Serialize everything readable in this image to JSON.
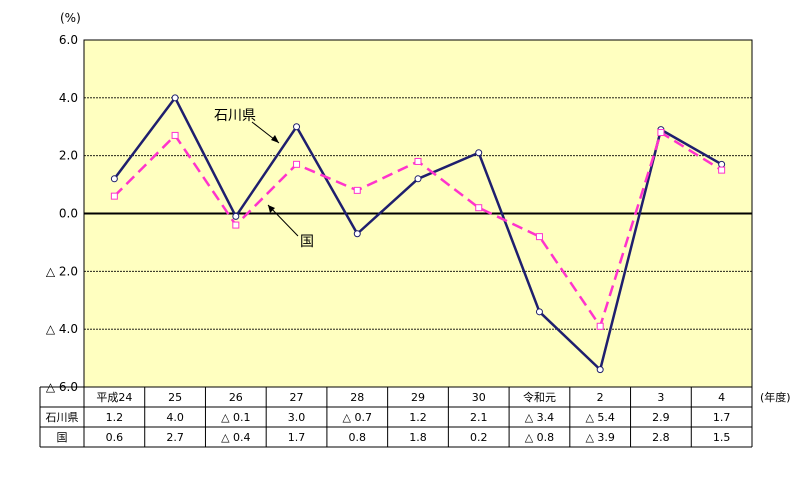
{
  "chart_data": {
    "type": "line",
    "y_unit": "(%)",
    "x_unit": "(年度)",
    "ylim": [
      -6.0,
      6.0
    ],
    "y_ticks": [
      {
        "value": 6.0,
        "label": "6.0"
      },
      {
        "value": 4.0,
        "label": "4.0"
      },
      {
        "value": 2.0,
        "label": "2.0"
      },
      {
        "value": 0.0,
        "label": "0.0"
      },
      {
        "value": -2.0,
        "label": "△ 2.0"
      },
      {
        "value": -4.0,
        "label": "△ 4.0"
      },
      {
        "value": -6.0,
        "label": "△ 6.0"
      }
    ],
    "categories": [
      "平成24",
      "25",
      "26",
      "27",
      "28",
      "29",
      "30",
      "令和元",
      "2",
      "3",
      "4"
    ],
    "series": [
      {
        "name": "石川県",
        "color": "#1f1f6e",
        "style": "solid",
        "marker": "circle",
        "values": [
          1.2,
          4.0,
          -0.1,
          3.0,
          -0.7,
          1.2,
          2.1,
          -3.4,
          -5.4,
          2.9,
          1.7
        ],
        "labels": [
          "1.2",
          "4.0",
          "△ 0.1",
          "3.0",
          "△ 0.7",
          "1.2",
          "2.1",
          "△ 3.4",
          "△ 5.4",
          "2.9",
          "1.7"
        ]
      },
      {
        "name": "国",
        "color": "#ff33cc",
        "style": "dashed",
        "marker": "square",
        "values": [
          0.6,
          2.7,
          -0.4,
          1.7,
          0.8,
          1.8,
          0.2,
          -0.8,
          -3.9,
          2.8,
          1.5
        ],
        "labels": [
          "0.6",
          "2.7",
          "△ 0.4",
          "1.7",
          "0.8",
          "1.8",
          "0.2",
          "△ 0.8",
          "△ 3.9",
          "2.8",
          "1.5"
        ]
      }
    ],
    "grid": true,
    "plot_background": "#ffffc0",
    "callouts": [
      {
        "series_index": 0,
        "text": "石川県"
      },
      {
        "series_index": 1,
        "text": "国"
      }
    ]
  }
}
